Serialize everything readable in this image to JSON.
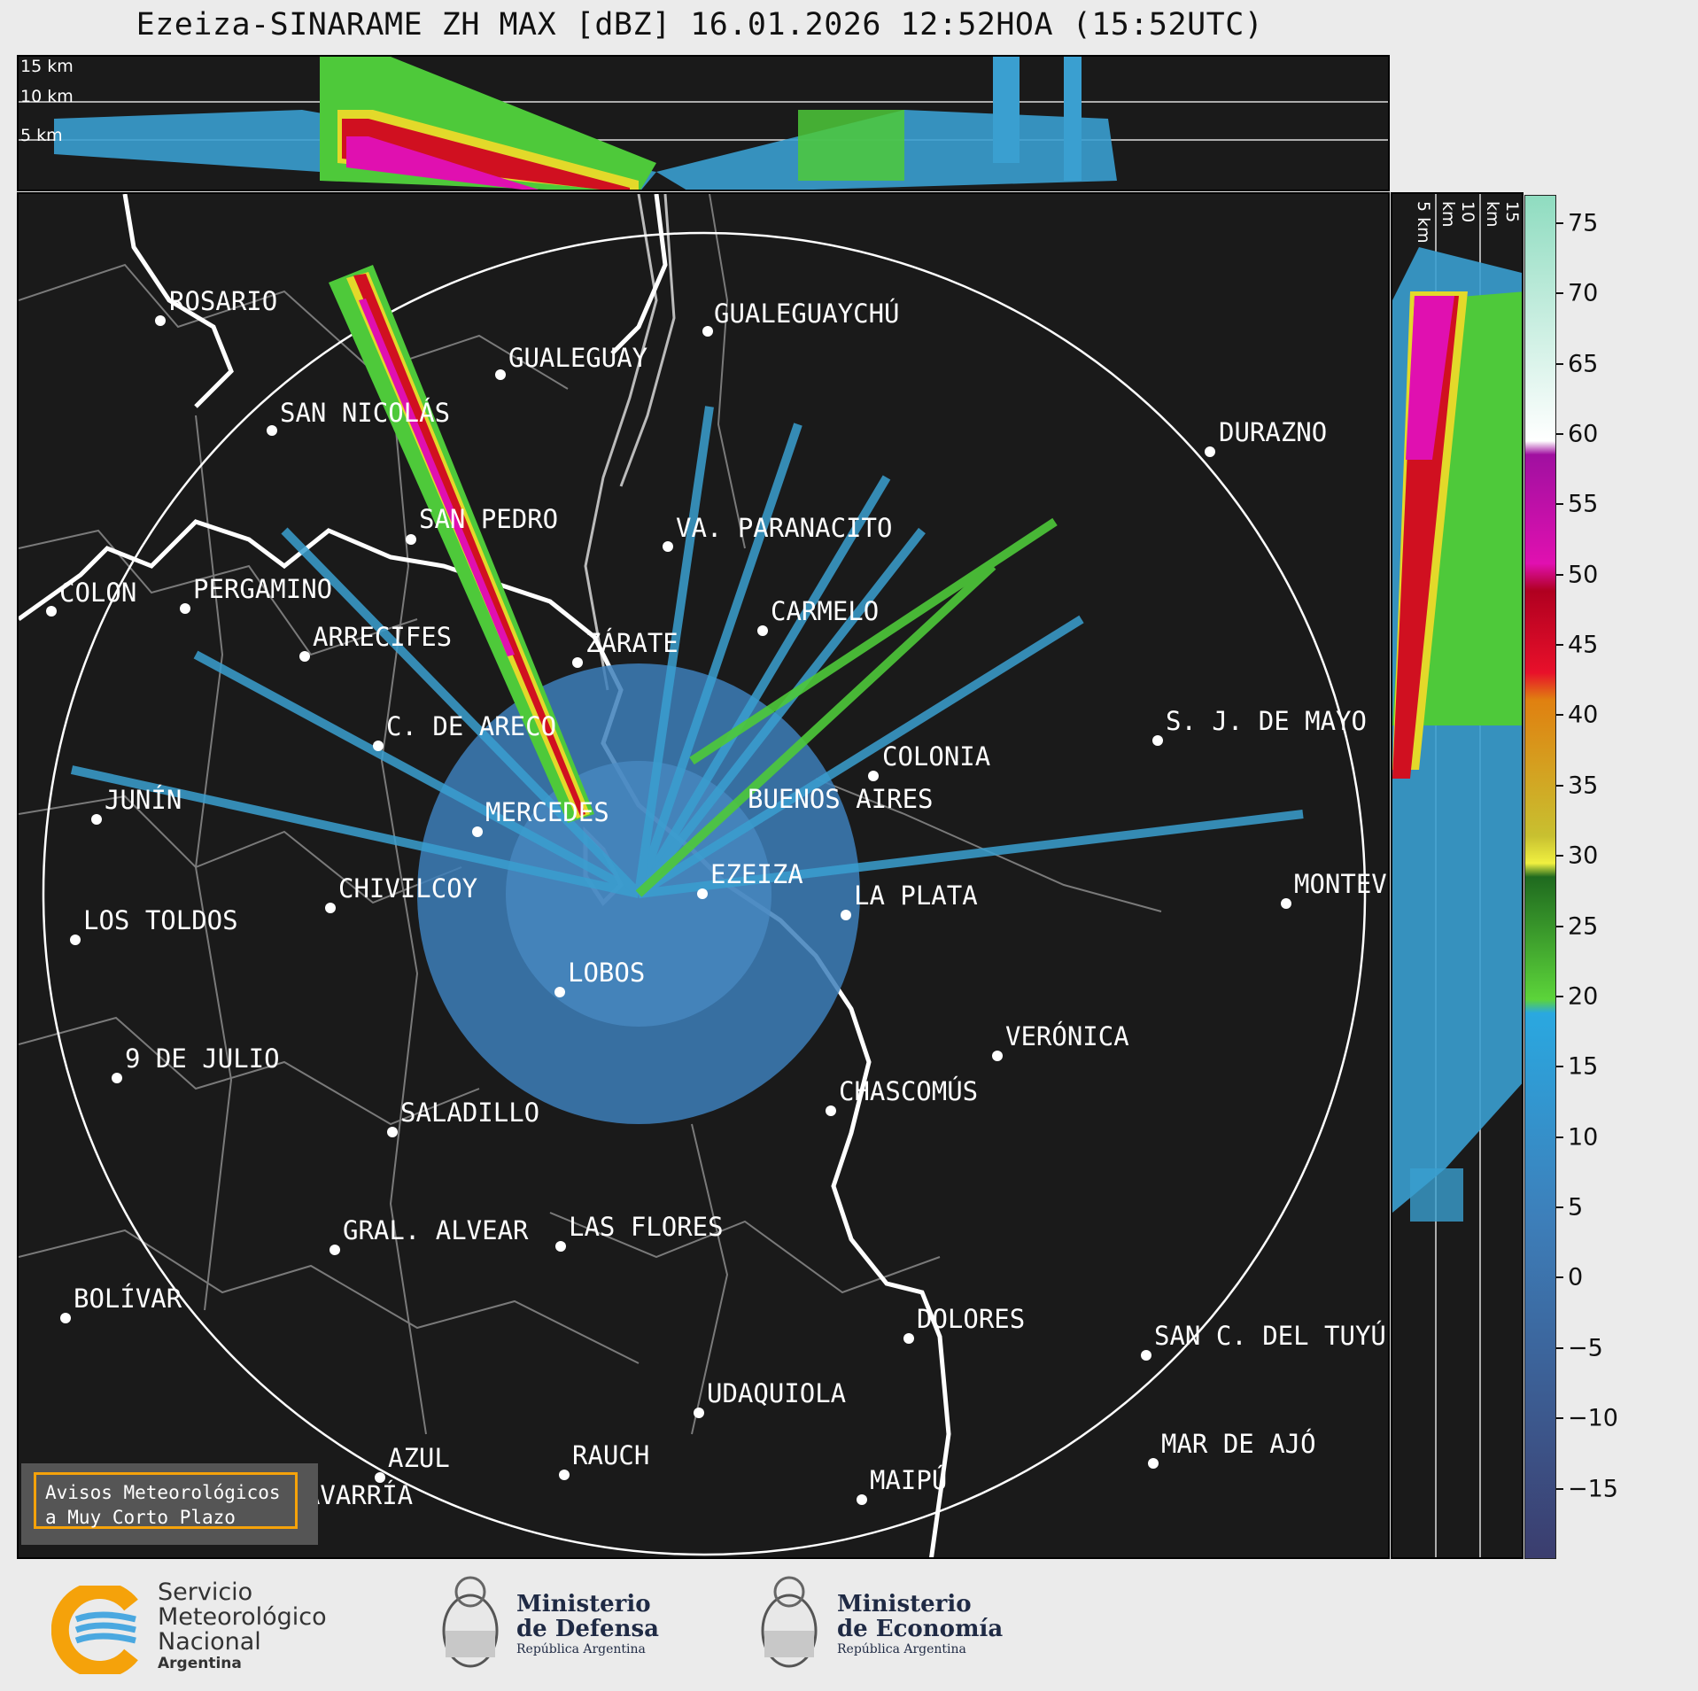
{
  "title": "Ezeiza-SINARAME ZH MAX [dBZ] 16.01.2026 12:52HOA (15:52UTC)",
  "top_panel": {
    "altitude_labels": [
      "15 km",
      "10 km",
      "5 km"
    ]
  },
  "side_panel": {
    "altitude_labels": [
      "5 km",
      "10 km",
      "15 km"
    ]
  },
  "colorbar": {
    "unit": "dBZ",
    "ticks": [
      "75",
      "70",
      "65",
      "60",
      "55",
      "50",
      "45",
      "40",
      "35",
      "30",
      "25",
      "20",
      "15",
      "10",
      "5",
      "0",
      "−5",
      "−10",
      "−15"
    ],
    "range": [
      -20,
      77
    ]
  },
  "cities": [
    {
      "name": "ROSARIO"
    },
    {
      "name": "GUALEGUAYCHÚ"
    },
    {
      "name": "GUALEGUAY"
    },
    {
      "name": "SAN NICOLÁS"
    },
    {
      "name": "DURAZNO"
    },
    {
      "name": "SAN PEDRO"
    },
    {
      "name": "VA. PARANACITO"
    },
    {
      "name": "COLON"
    },
    {
      "name": "PERGAMINO"
    },
    {
      "name": "CARMELO"
    },
    {
      "name": "ARRECIFES"
    },
    {
      "name": "ZÁRATE"
    },
    {
      "name": "C. DE ARECO"
    },
    {
      "name": "S. J. DE MAYO"
    },
    {
      "name": "COLONIA"
    },
    {
      "name": "JUNÍN"
    },
    {
      "name": "BUENOS AIRES"
    },
    {
      "name": "MERCEDES"
    },
    {
      "name": "EZEIZA"
    },
    {
      "name": "MONTEVIDEO"
    },
    {
      "name": "CHIVILCOY"
    },
    {
      "name": "LA PLATA"
    },
    {
      "name": "LOS TOLDOS"
    },
    {
      "name": "LOBOS"
    },
    {
      "name": "VERÓNICA"
    },
    {
      "name": "9 DE JULIO"
    },
    {
      "name": "CHASCOMÚS"
    },
    {
      "name": "SALADILLO"
    },
    {
      "name": "GRAL. ALVEAR"
    },
    {
      "name": "LAS FLORES"
    },
    {
      "name": "BOLÍVAR"
    },
    {
      "name": "DOLORES"
    },
    {
      "name": "SAN C. DEL TUYÚ"
    },
    {
      "name": "UDAQUIOLA"
    },
    {
      "name": "AZUL"
    },
    {
      "name": "RAUCH"
    },
    {
      "name": "MAR DE AJÓ"
    },
    {
      "name": "MAIPÚ"
    },
    {
      "name": "OLAVARRÍA"
    }
  ],
  "badge": {
    "line1": "Avisos Meteorológicos",
    "line2": "a Muy Corto Plazo"
  },
  "logos": {
    "smn": {
      "line1": "Servicio",
      "line2": "Meteorológico",
      "line3": "Nacional",
      "line4": "Argentina"
    },
    "defensa": {
      "line1": "Ministerio",
      "line2": "de Defensa",
      "line3": "República Argentina"
    },
    "economia": {
      "line1": "Ministerio",
      "line2": "de Economía",
      "line3": "República Argentina"
    }
  }
}
